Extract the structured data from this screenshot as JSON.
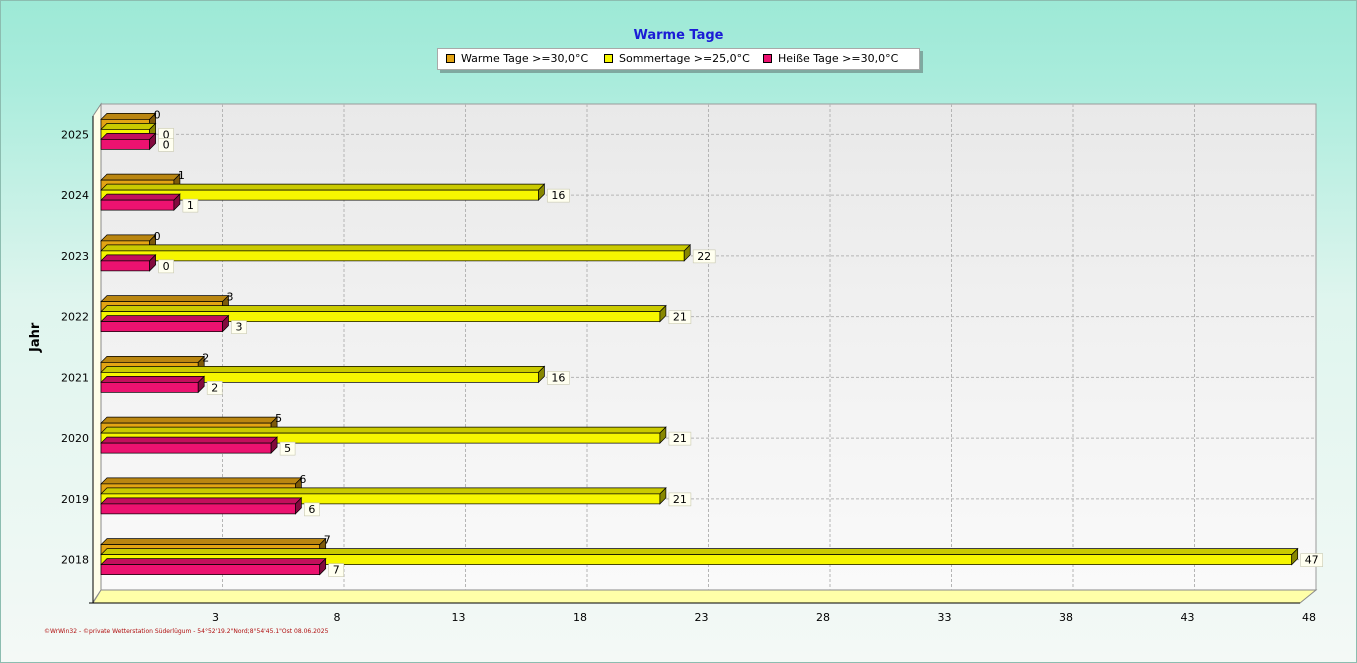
{
  "title": "Warme Tage",
  "footer": "©WrWin32 - ©private Wetterstation Süderlügum - 54°52'19.2\"Nord;8°54'45.1\"Ost 08.06.2025",
  "colors": {
    "warm": "#e3a414",
    "sommer": "#f6f600",
    "heiss": "#ec1270"
  },
  "legend": [
    {
      "label": "Warme Tage >=30,0°C",
      "color": "#e3a414"
    },
    {
      "label": "Sommertage >=25,0°C",
      "color": "#f6f600"
    },
    {
      "label": "Heiße Tage >=30,0°C",
      "color": "#ec1270"
    }
  ],
  "chart_data": {
    "type": "bar",
    "orientation": "horizontal",
    "title": "Warme Tage",
    "xlabel": "",
    "ylabel": "Jahr",
    "xlim": [
      -2,
      48
    ],
    "x_ticks": [
      3,
      8,
      13,
      18,
      23,
      28,
      33,
      38,
      43,
      48
    ],
    "grid": true,
    "legend_position": "top",
    "categories": [
      "2025",
      "2024",
      "2023",
      "2022",
      "2021",
      "2020",
      "2019",
      "2018"
    ],
    "series": [
      {
        "name": "Warme Tage >=30,0°C",
        "values": [
          0,
          1,
          0,
          3,
          2,
          5,
          6,
          7
        ]
      },
      {
        "name": "Sommertage >=25,0°C",
        "values": [
          0,
          16,
          22,
          21,
          16,
          21,
          21,
          47
        ]
      },
      {
        "name": "Heiße Tage >=30,0°C",
        "values": [
          0,
          1,
          0,
          3,
          2,
          5,
          6,
          7
        ]
      }
    ]
  }
}
